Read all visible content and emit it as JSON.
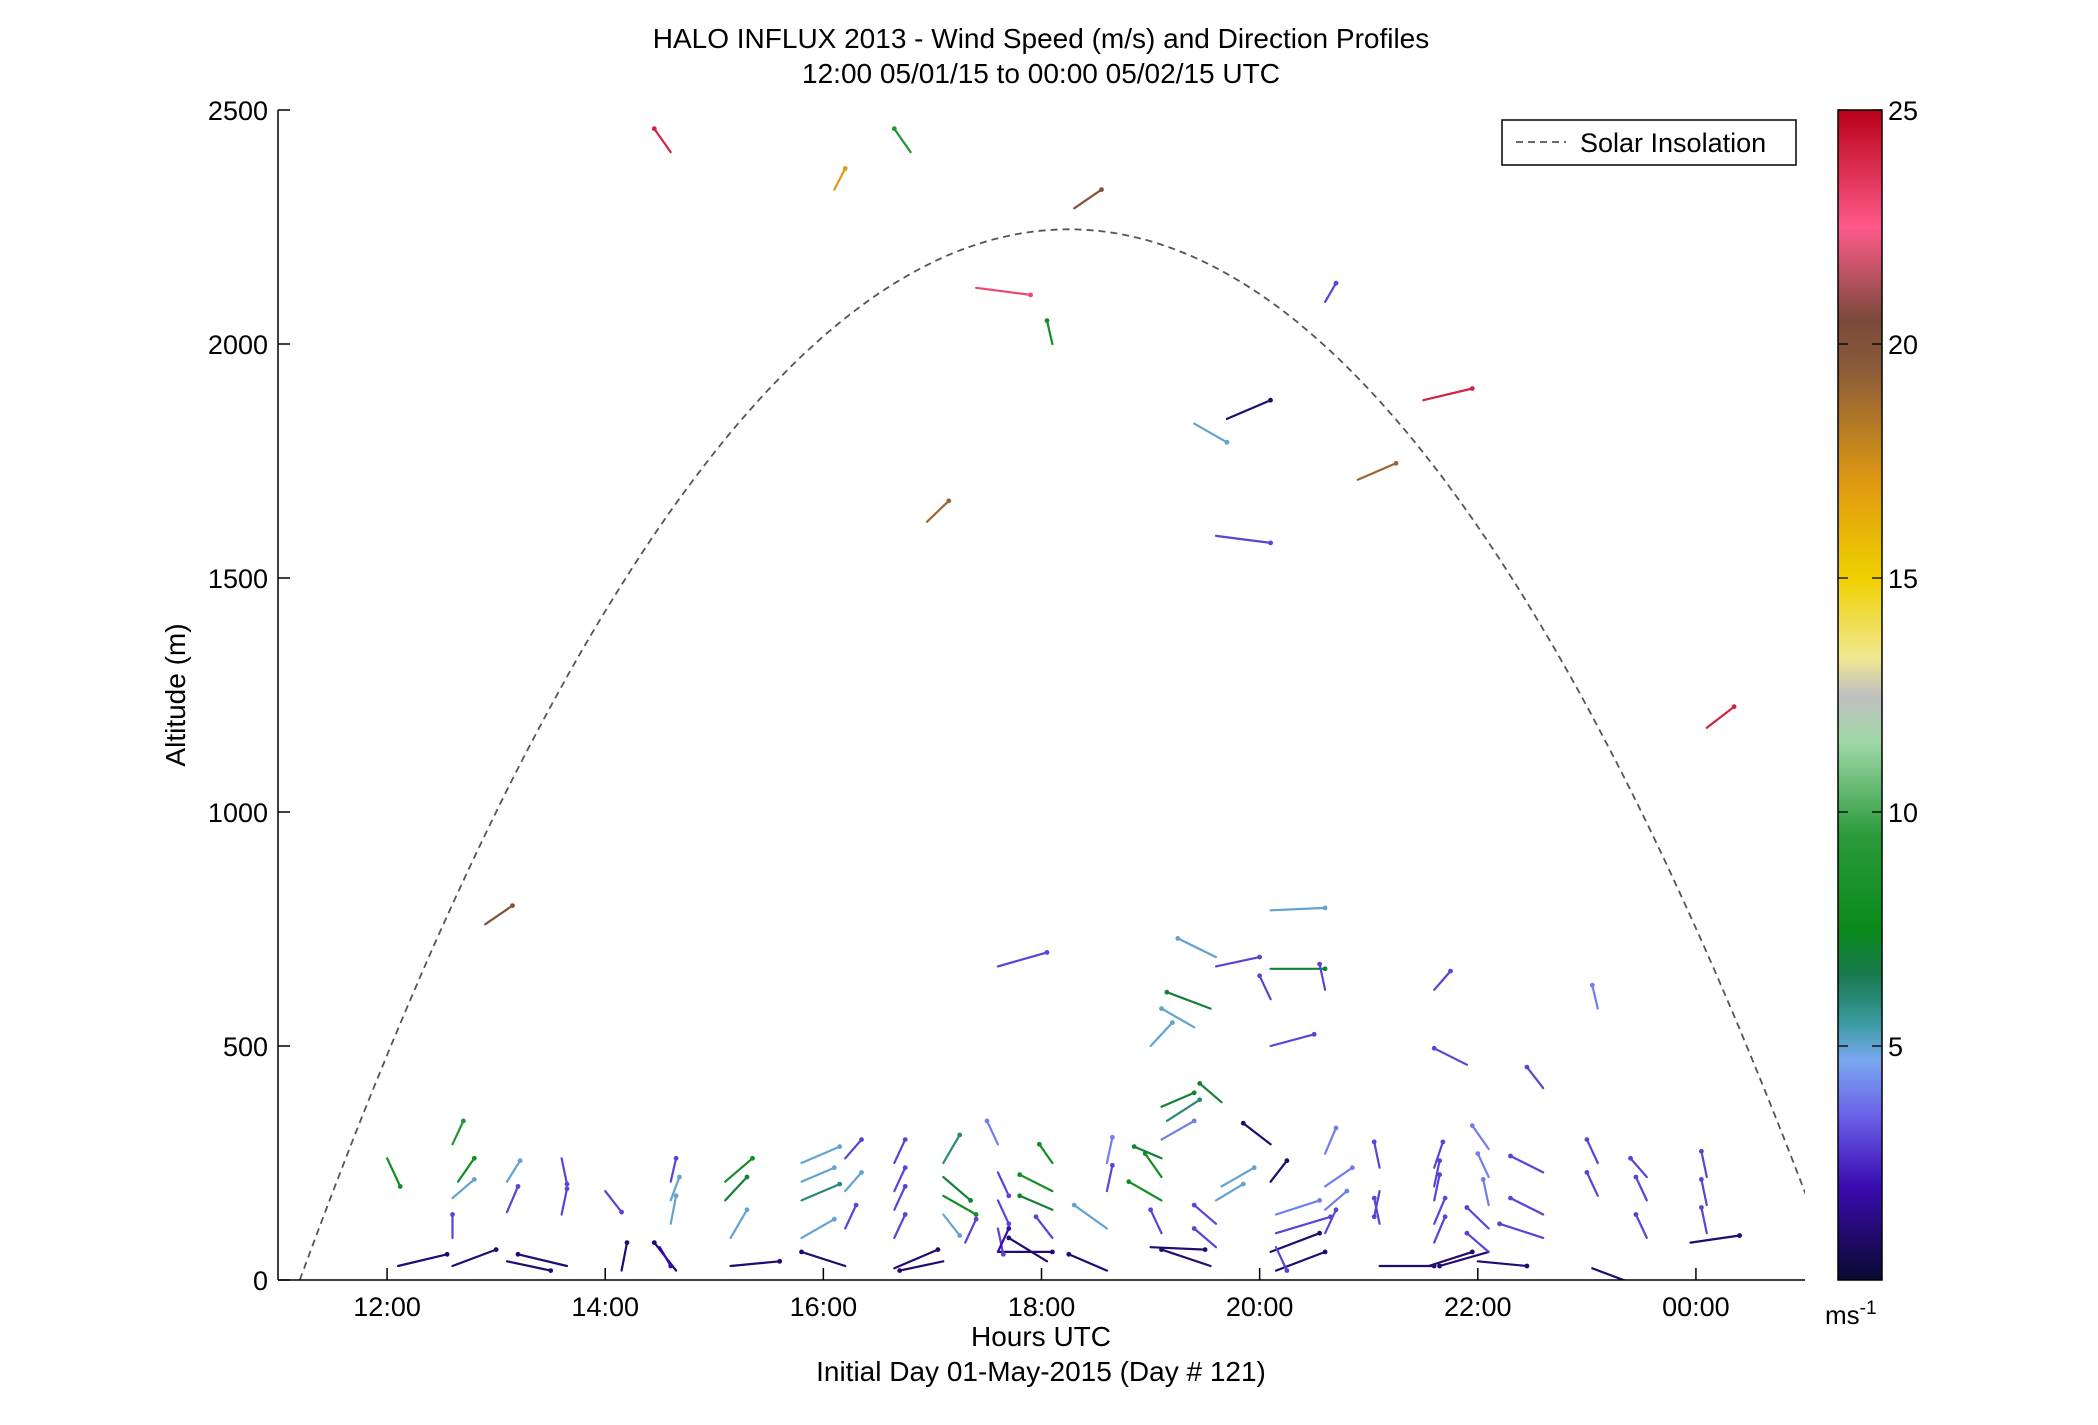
{
  "chart_data": {
    "type": "wind-barb-profile",
    "title": "HALO INFLUX 2013 - Wind Speed (m/s) and Direction Profiles",
    "subtitle": "12:00 05/01/15 to 00:00 05/02/15  UTC",
    "xlabel": "Hours UTC",
    "xlabel2": "Initial Day 01-May-2015 (Day # 121)",
    "ylabel": "Altitude (m)",
    "xlim": [
      11.0,
      25.0
    ],
    "ylim": [
      0,
      2500
    ],
    "x_ticks": [
      {
        "v": 12,
        "label": "12:00"
      },
      {
        "v": 14,
        "label": "14:00"
      },
      {
        "v": 16,
        "label": "16:00"
      },
      {
        "v": 18,
        "label": "18:00"
      },
      {
        "v": 20,
        "label": "20:00"
      },
      {
        "v": 22,
        "label": "22:00"
      },
      {
        "v": 24,
        "label": "00:00"
      }
    ],
    "y_ticks": [
      {
        "v": 0,
        "label": "0"
      },
      {
        "v": 500,
        "label": "500"
      },
      {
        "v": 1000,
        "label": "1000"
      },
      {
        "v": 1500,
        "label": "1500"
      },
      {
        "v": 2000,
        "label": "2000"
      },
      {
        "v": 2500,
        "label": "2500"
      }
    ],
    "legend": {
      "label": "Solar Insolation",
      "position": "top-right",
      "style": "dashed",
      "color": "#555555"
    },
    "solar_curve": {
      "start": 11.2,
      "end": 25.3,
      "peak": 2245
    },
    "colorbar": {
      "range": [
        0,
        25
      ],
      "ticks": [
        {
          "v": 5,
          "label": "5"
        },
        {
          "v": 10,
          "label": "10"
        },
        {
          "v": 15,
          "label": "15"
        },
        {
          "v": 20,
          "label": "20"
        },
        {
          "v": 25,
          "label": "25"
        }
      ],
      "unit_label": "ms",
      "unit_sup": "-1",
      "stops": [
        {
          "v": 0,
          "c": "#0a0a30"
        },
        {
          "v": 2,
          "c": "#3a0ab0"
        },
        {
          "v": 3.5,
          "c": "#6a60e8"
        },
        {
          "v": 4.7,
          "c": "#7aa8f0"
        },
        {
          "v": 5.5,
          "c": "#3a9aa0"
        },
        {
          "v": 6.5,
          "c": "#1a7a50"
        },
        {
          "v": 7.5,
          "c": "#0a8a1a"
        },
        {
          "v": 9.5,
          "c": "#2a9a3a"
        },
        {
          "v": 11.5,
          "c": "#a0d8a8"
        },
        {
          "v": 12.5,
          "c": "#c0c0c0"
        },
        {
          "v": 13.3,
          "c": "#f0e890"
        },
        {
          "v": 15,
          "c": "#f0d000"
        },
        {
          "v": 17,
          "c": "#e09a10"
        },
        {
          "v": 19.5,
          "c": "#8a5a3a"
        },
        {
          "v": 20.5,
          "c": "#7a4a3a"
        },
        {
          "v": 22.5,
          "c": "#ff5a8a"
        },
        {
          "v": 25,
          "c": "#b80018"
        }
      ]
    },
    "barbs": [
      {
        "t": 12.1,
        "alt": 30,
        "dx": 0.45,
        "dalt": 25,
        "spd": 1
      },
      {
        "t": 12.6,
        "alt": 30,
        "dx": 0.4,
        "dalt": 35,
        "spd": 1
      },
      {
        "t": 13.1,
        "alt": 40,
        "dx": 0.4,
        "dalt": -20,
        "spd": 1
      },
      {
        "t": 13.65,
        "alt": 30,
        "dx": -0.45,
        "dalt": 25,
        "spd": 1
      },
      {
        "t": 14.15,
        "alt": 20,
        "dx": 0.05,
        "dalt": 60,
        "spd": 1
      },
      {
        "t": 14.65,
        "alt": 20,
        "dx": -0.2,
        "dalt": 60,
        "spd": 1
      },
      {
        "t": 15.15,
        "alt": 30,
        "dx": 0.45,
        "dalt": 10,
        "spd": 1
      },
      {
        "t": 16.2,
        "alt": 30,
        "dx": -0.4,
        "dalt": 30,
        "spd": 1
      },
      {
        "t": 16.65,
        "alt": 25,
        "dx": 0.4,
        "dalt": 40,
        "spd": 1
      },
      {
        "t": 17.1,
        "alt": 40,
        "dx": -0.4,
        "dalt": -20,
        "spd": 1
      },
      {
        "t": 17.6,
        "alt": 60,
        "dx": 0.5,
        "dalt": 0,
        "spd": 1
      },
      {
        "t": 18.05,
        "alt": 40,
        "dx": -0.35,
        "dalt": 50,
        "spd": 1
      },
      {
        "t": 18.6,
        "alt": 20,
        "dx": -0.35,
        "dalt": 35,
        "spd": 1
      },
      {
        "t": 19.0,
        "alt": 70,
        "dx": 0.5,
        "dalt": -5,
        "spd": 1
      },
      {
        "t": 19.55,
        "alt": 30,
        "dx": -0.45,
        "dalt": 35,
        "spd": 1
      },
      {
        "t": 20.1,
        "alt": 60,
        "dx": 0.45,
        "dalt": 40,
        "spd": 1
      },
      {
        "t": 20.15,
        "alt": 20,
        "dx": 0.45,
        "dalt": 40,
        "spd": 1
      },
      {
        "t": 21.1,
        "alt": 30,
        "dx": 0.5,
        "dalt": 0,
        "spd": 1
      },
      {
        "t": 21.55,
        "alt": 30,
        "dx": 0.4,
        "dalt": 30,
        "spd": 1
      },
      {
        "t": 22.0,
        "alt": 40,
        "dx": 0.45,
        "dalt": -10,
        "spd": 1
      },
      {
        "t": 22.1,
        "alt": 60,
        "dx": -0.45,
        "dalt": -30,
        "spd": 1
      },
      {
        "t": 23.05,
        "alt": 25,
        "dx": 0.4,
        "dalt": -35,
        "spd": 1
      },
      {
        "t": 23.95,
        "alt": 80,
        "dx": 0.45,
        "dalt": 15,
        "spd": 1
      },
      {
        "t": 12.0,
        "alt": 260,
        "dx": 0.12,
        "dalt": -60,
        "spd": 8
      },
      {
        "t": 12.65,
        "alt": 210,
        "dx": 0.15,
        "dalt": 50,
        "spd": 8
      },
      {
        "t": 12.6,
        "alt": 290,
        "dx": 0.1,
        "dalt": 50,
        "spd": 9
      },
      {
        "t": 12.6,
        "alt": 175,
        "dx": 0.2,
        "dalt": 40,
        "spd": 5
      },
      {
        "t": 12.6,
        "alt": 90,
        "dx": 0.0,
        "dalt": 50,
        "spd": 3
      },
      {
        "t": 13.1,
        "alt": 210,
        "dx": 0.12,
        "dalt": 45,
        "spd": 5
      },
      {
        "t": 13.1,
        "alt": 145,
        "dx": 0.1,
        "dalt": 55,
        "spd": 3
      },
      {
        "t": 13.6,
        "alt": 260,
        "dx": 0.05,
        "dalt": -55,
        "spd": 3
      },
      {
        "t": 13.6,
        "alt": 140,
        "dx": 0.05,
        "dalt": 55,
        "spd": 3
      },
      {
        "t": 14.0,
        "alt": 190,
        "dx": 0.15,
        "dalt": -45,
        "spd": 3
      },
      {
        "t": 14.6,
        "alt": 210,
        "dx": 0.05,
        "dalt": 50,
        "spd": 3
      },
      {
        "t": 14.6,
        "alt": 170,
        "dx": 0.08,
        "dalt": 50,
        "spd": 5
      },
      {
        "t": 14.6,
        "alt": 120,
        "dx": 0.05,
        "dalt": 60,
        "spd": 5
      },
      {
        "t": 14.5,
        "alt": 70,
        "dx": 0.1,
        "dalt": -40,
        "spd": 2
      },
      {
        "t": 15.1,
        "alt": 210,
        "dx": 0.25,
        "dalt": 50,
        "spd": 8
      },
      {
        "t": 15.1,
        "alt": 170,
        "dx": 0.2,
        "dalt": 50,
        "spd": 7
      },
      {
        "t": 15.15,
        "alt": 90,
        "dx": 0.15,
        "dalt": 60,
        "spd": 5
      },
      {
        "t": 15.8,
        "alt": 250,
        "dx": 0.35,
        "dalt": 35,
        "spd": 5
      },
      {
        "t": 15.8,
        "alt": 210,
        "dx": 0.3,
        "dalt": 30,
        "spd": 5
      },
      {
        "t": 15.8,
        "alt": 170,
        "dx": 0.35,
        "dalt": 35,
        "spd": 6
      },
      {
        "t": 15.8,
        "alt": 90,
        "dx": 0.3,
        "dalt": 40,
        "spd": 5
      },
      {
        "t": 16.2,
        "alt": 260,
        "dx": 0.15,
        "dalt": 40,
        "spd": 3
      },
      {
        "t": 16.2,
        "alt": 190,
        "dx": 0.15,
        "dalt": 40,
        "spd": 5
      },
      {
        "t": 16.2,
        "alt": 110,
        "dx": 0.1,
        "dalt": 50,
        "spd": 3
      },
      {
        "t": 16.65,
        "alt": 250,
        "dx": 0.1,
        "dalt": 50,
        "spd": 3
      },
      {
        "t": 16.65,
        "alt": 190,
        "dx": 0.1,
        "dalt": 50,
        "spd": 3
      },
      {
        "t": 16.65,
        "alt": 150,
        "dx": 0.1,
        "dalt": 50,
        "spd": 3
      },
      {
        "t": 16.65,
        "alt": 90,
        "dx": 0.1,
        "dalt": 50,
        "spd": 3
      },
      {
        "t": 17.1,
        "alt": 250,
        "dx": 0.15,
        "dalt": 60,
        "spd": 6
      },
      {
        "t": 17.1,
        "alt": 220,
        "dx": 0.25,
        "dalt": -50,
        "spd": 7
      },
      {
        "t": 17.1,
        "alt": 180,
        "dx": 0.3,
        "dalt": -40,
        "spd": 8
      },
      {
        "t": 17.1,
        "alt": 140,
        "dx": 0.15,
        "dalt": -45,
        "spd": 5
      },
      {
        "t": 17.3,
        "alt": 80,
        "dx": 0.1,
        "dalt": 50,
        "spd": 3
      },
      {
        "t": 17.6,
        "alt": 290,
        "dx": -0.1,
        "dalt": 50,
        "spd": 4
      },
      {
        "t": 17.6,
        "alt": 230,
        "dx": 0.1,
        "dalt": -50,
        "spd": 3
      },
      {
        "t": 17.6,
        "alt": 170,
        "dx": 0.1,
        "dalt": -50,
        "spd": 3
      },
      {
        "t": 17.6,
        "alt": 110,
        "dx": 0.05,
        "dalt": -55,
        "spd": 3
      },
      {
        "t": 17.6,
        "alt": 60,
        "dx": 0.1,
        "dalt": 50,
        "spd": 2
      },
      {
        "t": 18.1,
        "alt": 250,
        "dx": -0.12,
        "dalt": 40,
        "spd": 8
      },
      {
        "t": 18.1,
        "alt": 190,
        "dx": -0.3,
        "dalt": 35,
        "spd": 8
      },
      {
        "t": 18.1,
        "alt": 150,
        "dx": -0.3,
        "dalt": 30,
        "spd": 7
      },
      {
        "t": 18.1,
        "alt": 90,
        "dx": -0.15,
        "dalt": 45,
        "spd": 3
      },
      {
        "t": 18.6,
        "alt": 250,
        "dx": 0.05,
        "dalt": 55,
        "spd": 4
      },
      {
        "t": 18.6,
        "alt": 190,
        "dx": 0.05,
        "dalt": 55,
        "spd": 3
      },
      {
        "t": 18.6,
        "alt": 110,
        "dx": -0.3,
        "dalt": 50,
        "spd": 5
      },
      {
        "t": 19.1,
        "alt": 260,
        "dx": -0.25,
        "dalt": 25,
        "spd": 7
      },
      {
        "t": 19.1,
        "alt": 220,
        "dx": -0.15,
        "dalt": 50,
        "spd": 8
      },
      {
        "t": 19.1,
        "alt": 170,
        "dx": -0.3,
        "dalt": 40,
        "spd": 8
      },
      {
        "t": 19.1,
        "alt": 100,
        "dx": -0.1,
        "dalt": 50,
        "spd": 3
      },
      {
        "t": 19.1,
        "alt": 300,
        "dx": 0.3,
        "dalt": 40,
        "spd": 4
      },
      {
        "t": 19.15,
        "alt": 340,
        "dx": 0.3,
        "dalt": 45,
        "spd": 6
      },
      {
        "t": 19.1,
        "alt": 370,
        "dx": 0.3,
        "dalt": 30,
        "spd": 7
      },
      {
        "t": 19.65,
        "alt": 380,
        "dx": -0.2,
        "dalt": 40,
        "spd": 7
      },
      {
        "t": 19.6,
        "alt": 120,
        "dx": -0.2,
        "dalt": 40,
        "spd": 3
      },
      {
        "t": 19.6,
        "alt": 70,
        "dx": -0.2,
        "dalt": 40,
        "spd": 3
      },
      {
        "t": 19.6,
        "alt": 170,
        "dx": 0.25,
        "dalt": 35,
        "spd": 5
      },
      {
        "t": 19.65,
        "alt": 200,
        "dx": 0.3,
        "dalt": 40,
        "spd": 5
      },
      {
        "t": 20.1,
        "alt": 290,
        "dx": -0.25,
        "dalt": 45,
        "spd": 1
      },
      {
        "t": 20.1,
        "alt": 210,
        "dx": 0.15,
        "dalt": 45,
        "spd": 1
      },
      {
        "t": 20.15,
        "alt": 140,
        "dx": 0.4,
        "dalt": 30,
        "spd": 4
      },
      {
        "t": 20.15,
        "alt": 100,
        "dx": 0.5,
        "dalt": 35,
        "spd": 3
      },
      {
        "t": 20.15,
        "alt": 70,
        "dx": 0.1,
        "dalt": -50,
        "spd": 3
      },
      {
        "t": 20.6,
        "alt": 270,
        "dx": 0.1,
        "dalt": 55,
        "spd": 4
      },
      {
        "t": 20.6,
        "alt": 200,
        "dx": 0.25,
        "dalt": 40,
        "spd": 4
      },
      {
        "t": 20.6,
        "alt": 150,
        "dx": 0.2,
        "dalt": 40,
        "spd": 4
      },
      {
        "t": 20.6,
        "alt": 100,
        "dx": 0.1,
        "dalt": 50,
        "spd": 3
      },
      {
        "t": 21.1,
        "alt": 240,
        "dx": -0.05,
        "dalt": 55,
        "spd": 3
      },
      {
        "t": 21.1,
        "alt": 190,
        "dx": -0.05,
        "dalt": -55,
        "spd": 3
      },
      {
        "t": 21.1,
        "alt": 120,
        "dx": -0.05,
        "dalt": 55,
        "spd": 3
      },
      {
        "t": 21.6,
        "alt": 240,
        "dx": 0.08,
        "dalt": 55,
        "spd": 3
      },
      {
        "t": 21.6,
        "alt": 200,
        "dx": 0.05,
        "dalt": 55,
        "spd": 3
      },
      {
        "t": 21.6,
        "alt": 170,
        "dx": 0.05,
        "dalt": 55,
        "spd": 3
      },
      {
        "t": 21.6,
        "alt": 120,
        "dx": 0.1,
        "dalt": 55,
        "spd": 3
      },
      {
        "t": 21.6,
        "alt": 80,
        "dx": 0.1,
        "dalt": 55,
        "spd": 3
      },
      {
        "t": 22.1,
        "alt": 280,
        "dx": -0.15,
        "dalt": 50,
        "spd": 4
      },
      {
        "t": 22.1,
        "alt": 220,
        "dx": -0.1,
        "dalt": 50,
        "spd": 4
      },
      {
        "t": 22.1,
        "alt": 160,
        "dx": -0.05,
        "dalt": 55,
        "spd": 4
      },
      {
        "t": 22.1,
        "alt": 110,
        "dx": -0.2,
        "dalt": 45,
        "spd": 3
      },
      {
        "t": 22.1,
        "alt": 60,
        "dx": -0.2,
        "dalt": 40,
        "spd": 3
      },
      {
        "t": 22.6,
        "alt": 230,
        "dx": -0.3,
        "dalt": 35,
        "spd": 3
      },
      {
        "t": 22.6,
        "alt": 140,
        "dx": -0.3,
        "dalt": 35,
        "spd": 3
      },
      {
        "t": 22.6,
        "alt": 90,
        "dx": -0.4,
        "dalt": 30,
        "spd": 3
      },
      {
        "t": 23.1,
        "alt": 250,
        "dx": -0.1,
        "dalt": 50,
        "spd": 3
      },
      {
        "t": 23.1,
        "alt": 180,
        "dx": -0.1,
        "dalt": 50,
        "spd": 3
      },
      {
        "t": 23.55,
        "alt": 220,
        "dx": -0.15,
        "dalt": 40,
        "spd": 3
      },
      {
        "t": 23.55,
        "alt": 170,
        "dx": -0.1,
        "dalt": 50,
        "spd": 3
      },
      {
        "t": 23.55,
        "alt": 90,
        "dx": -0.1,
        "dalt": 50,
        "spd": 3
      },
      {
        "t": 24.1,
        "alt": 220,
        "dx": -0.05,
        "dalt": 55,
        "spd": 3
      },
      {
        "t": 24.1,
        "alt": 160,
        "dx": -0.05,
        "dalt": 55,
        "spd": 3
      },
      {
        "t": 24.1,
        "alt": 100,
        "dx": -0.05,
        "dalt": 55,
        "spd": 3
      },
      {
        "t": 12.9,
        "alt": 760,
        "dx": 0.25,
        "dalt": 40,
        "spd": 20
      },
      {
        "t": 17.6,
        "alt": 670,
        "dx": 0.45,
        "dalt": 30,
        "spd": 3
      },
      {
        "t": 19.0,
        "alt": 500,
        "dx": 0.2,
        "dalt": 50,
        "spd": 5
      },
      {
        "t": 19.4,
        "alt": 540,
        "dx": -0.3,
        "dalt": 40,
        "spd": 5
      },
      {
        "t": 19.55,
        "alt": 580,
        "dx": -0.4,
        "dalt": 35,
        "spd": 7
      },
      {
        "t": 19.6,
        "alt": 690,
        "dx": -0.35,
        "dalt": 40,
        "spd": 5
      },
      {
        "t": 19.6,
        "alt": 670,
        "dx": 0.4,
        "dalt": 20,
        "spd": 3
      },
      {
        "t": 20.1,
        "alt": 665,
        "dx": 0.5,
        "dalt": 0,
        "spd": 7
      },
      {
        "t": 20.1,
        "alt": 600,
        "dx": -0.1,
        "dalt": 50,
        "spd": 3
      },
      {
        "t": 20.1,
        "alt": 500,
        "dx": 0.4,
        "dalt": 25,
        "spd": 3
      },
      {
        "t": 20.1,
        "alt": 790,
        "dx": 0.5,
        "dalt": 5,
        "spd": 5
      },
      {
        "t": 20.6,
        "alt": 620,
        "dx": -0.05,
        "dalt": 55,
        "spd": 3
      },
      {
        "t": 21.6,
        "alt": 620,
        "dx": 0.15,
        "dalt": 40,
        "spd": 3
      },
      {
        "t": 21.9,
        "alt": 460,
        "dx": -0.3,
        "dalt": 35,
        "spd": 3
      },
      {
        "t": 22.6,
        "alt": 410,
        "dx": -0.15,
        "dalt": 45,
        "spd": 3
      },
      {
        "t": 23.1,
        "alt": 580,
        "dx": -0.05,
        "dalt": 50,
        "spd": 4
      },
      {
        "t": 14.6,
        "alt": 2410,
        "dx": -0.15,
        "dalt": 50,
        "spd": 24
      },
      {
        "t": 16.1,
        "alt": 2330,
        "dx": 0.1,
        "dalt": 45,
        "spd": 17
      },
      {
        "t": 16.8,
        "alt": 2410,
        "dx": -0.15,
        "dalt": 50,
        "spd": 9
      },
      {
        "t": 18.3,
        "alt": 2290,
        "dx": 0.25,
        "dalt": 40,
        "spd": 20
      },
      {
        "t": 17.4,
        "alt": 2120,
        "dx": 0.5,
        "dalt": -15,
        "spd": 23
      },
      {
        "t": 18.1,
        "alt": 2000,
        "dx": -0.05,
        "dalt": 50,
        "spd": 8
      },
      {
        "t": 20.6,
        "alt": 2090,
        "dx": 0.1,
        "dalt": 40,
        "spd": 3
      },
      {
        "t": 19.4,
        "alt": 1830,
        "dx": 0.3,
        "dalt": -40,
        "spd": 5
      },
      {
        "t": 19.7,
        "alt": 1840,
        "dx": 0.4,
        "dalt": 40,
        "spd": 1
      },
      {
        "t": 21.5,
        "alt": 1880,
        "dx": 0.45,
        "dalt": 25,
        "spd": 24
      },
      {
        "t": 20.9,
        "alt": 1710,
        "dx": 0.35,
        "dalt": 35,
        "spd": 19
      },
      {
        "t": 16.95,
        "alt": 1620,
        "dx": 0.2,
        "dalt": 45,
        "spd": 19
      },
      {
        "t": 19.6,
        "alt": 1590,
        "dx": 0.5,
        "dalt": -15,
        "spd": 3
      },
      {
        "t": 24.1,
        "alt": 1180,
        "dx": 0.25,
        "dalt": 45,
        "spd": 24
      }
    ]
  }
}
